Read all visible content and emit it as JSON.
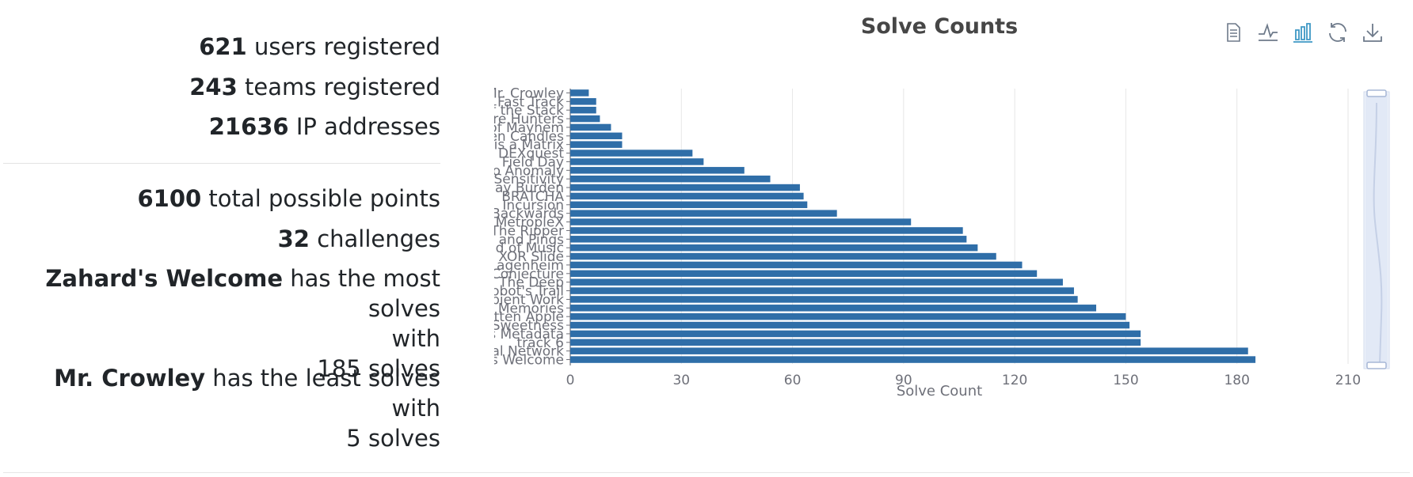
{
  "stats": {
    "users_count": "621",
    "users_label": " users registered",
    "teams_count": "243",
    "teams_label": " teams registered",
    "ip_count": "21636",
    "ip_label": " IP addresses",
    "points_count": "6100",
    "points_label": " total possible points",
    "challenges_count": "32",
    "challenges_label": " challenges",
    "most_name": "Zahard's Welcome",
    "most_text1": " has the most solves",
    "most_text2": "with",
    "most_text3": "185 solves",
    "least_name": "Mr. Crowley",
    "least_text1": " has the least solves with",
    "least_text2": "5 solves"
  },
  "toolbox": {
    "icons": [
      "data-view-icon",
      "line-chart-icon",
      "bar-chart-icon",
      "restore-icon",
      "download-icon"
    ],
    "active": "bar-chart-icon",
    "color": "#6e7a8a",
    "active_color": "#3e98c5"
  },
  "chart_data": {
    "type": "bar",
    "orientation": "horizontal",
    "title": "Solve Counts",
    "xlabel": "Solve Count",
    "ylabel": "",
    "xlim": [
      0,
      210
    ],
    "xticks": [
      0,
      30,
      60,
      90,
      120,
      150,
      180,
      210
    ],
    "grid": true,
    "bar_color": "#2f6ea8",
    "categories": [
      "Mr. Crowley",
      "Fast Track",
      "of the Stack",
      "are Hunters",
      "of Mayhem",
      "en Candles",
      "is a Matrix",
      "u DEXquest",
      "Field Day",
      "io Anomaly",
      "e Sensitivity",
      "ay Burden",
      "BRATCHA",
      "Incursion",
      "Backwards",
      "MetropleX",
      "The Ripper",
      "s and Pings",
      "d of Music",
      "XOR Slide",
      "agenheim",
      "Conjecture",
      "The Deep",
      "Robot's Trail",
      "bient Work",
      "Memories",
      "tten Apple",
      "Sweetness",
      "s Metadata",
      "track 6",
      "ial Network",
      "s Welcome"
    ],
    "values": [
      5,
      7,
      7,
      8,
      11,
      14,
      14,
      33,
      36,
      47,
      54,
      62,
      63,
      64,
      72,
      92,
      106,
      107,
      110,
      115,
      122,
      126,
      133,
      136,
      137,
      142,
      150,
      151,
      154,
      154,
      183,
      185
    ]
  }
}
